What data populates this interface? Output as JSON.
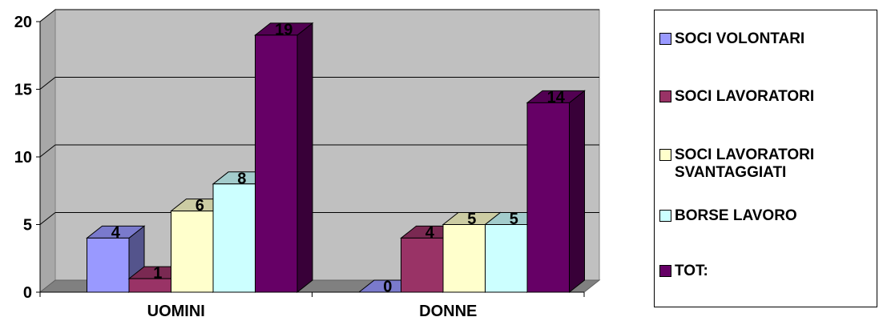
{
  "chart_data": {
    "type": "bar",
    "categories": [
      "UOMINI",
      "DONNE"
    ],
    "series": [
      {
        "name": "SOCI VOLONTARI",
        "values": [
          4,
          0
        ],
        "color": "#9999FF"
      },
      {
        "name": "SOCI LAVORATORI",
        "values": [
          1,
          4
        ],
        "color": "#993366"
      },
      {
        "name": "SOCI LAVORATORI SVANTAGGIATI",
        "values": [
          6,
          5
        ],
        "color": "#FFFFCC"
      },
      {
        "name": "BORSE LAVORO",
        "values": [
          8,
          5
        ],
        "color": "#CCFFFF"
      },
      {
        "name": "TOT:",
        "values": [
          19,
          14
        ],
        "color": "#660066"
      }
    ],
    "ylim": [
      0,
      20
    ],
    "yticks": [
      "0",
      "5",
      "10",
      "15",
      "20"
    ],
    "grid": true,
    "wall_color": "#C0C0C0",
    "legend_position": "right"
  }
}
